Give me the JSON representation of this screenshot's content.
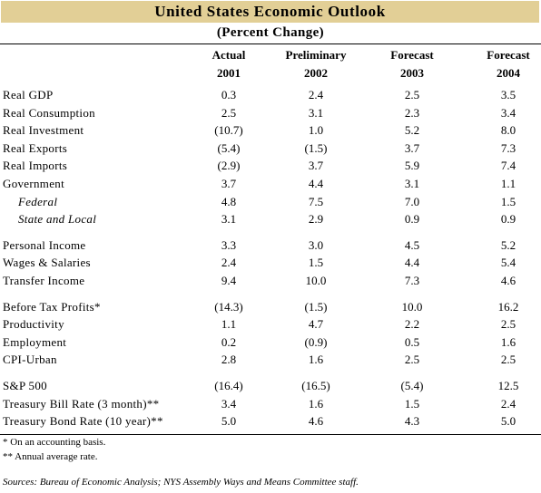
{
  "title": "United States Economic Outlook",
  "subtitle": "(Percent Change)",
  "columns": [
    {
      "label": "Actual",
      "year": "2001"
    },
    {
      "label": "Preliminary",
      "year": "2002"
    },
    {
      "label": "Forecast",
      "year": "2003"
    },
    {
      "label": "Forecast",
      "year": "2004"
    }
  ],
  "groups": [
    [
      {
        "label": "Real GDP",
        "values": [
          "0.3",
          "2.4",
          "2.5",
          "3.5"
        ]
      },
      {
        "label": "Real Consumption",
        "values": [
          "2.5",
          "3.1",
          "2.3",
          "3.4"
        ]
      },
      {
        "label": "Real Investment",
        "values": [
          "(10.7)",
          "1.0",
          "5.2",
          "8.0"
        ]
      },
      {
        "label": "Real Exports",
        "values": [
          "(5.4)",
          "(1.5)",
          "3.7",
          "7.3"
        ]
      },
      {
        "label": "Real Imports",
        "values": [
          "(2.9)",
          "3.7",
          "5.9",
          "7.4"
        ]
      },
      {
        "label": "Government",
        "values": [
          "3.7",
          "4.4",
          "3.1",
          "1.1"
        ]
      },
      {
        "label": "Federal",
        "values": [
          "4.8",
          "7.5",
          "7.0",
          "1.5"
        ],
        "sub": true
      },
      {
        "label": "State and Local",
        "values": [
          "3.1",
          "2.9",
          "0.9",
          "0.9"
        ],
        "sub": true
      }
    ],
    [
      {
        "label": "Personal Income",
        "values": [
          "3.3",
          "3.0",
          "4.5",
          "5.2"
        ]
      },
      {
        "label": "Wages & Salaries",
        "values": [
          "2.4",
          "1.5",
          "4.4",
          "5.4"
        ]
      },
      {
        "label": "Transfer Income",
        "values": [
          "9.4",
          "10.0",
          "7.3",
          "4.6"
        ]
      }
    ],
    [
      {
        "label": "Before Tax Profits*",
        "values": [
          "(14.3)",
          "(1.5)",
          "10.0",
          "16.2"
        ]
      },
      {
        "label": "Productivity",
        "values": [
          "1.1",
          "4.7",
          "2.2",
          "2.5"
        ]
      },
      {
        "label": "Employment",
        "values": [
          "0.2",
          "(0.9)",
          "0.5",
          "1.6"
        ]
      },
      {
        "label": "CPI-Urban",
        "values": [
          "2.8",
          "1.6",
          "2.5",
          "2.5"
        ]
      }
    ],
    [
      {
        "label": "S&P 500",
        "values": [
          "(16.4)",
          "(16.5)",
          "(5.4)",
          "12.5"
        ]
      },
      {
        "label": "Treasury Bill Rate (3 month)**",
        "values": [
          "3.4",
          "1.6",
          "1.5",
          "2.4"
        ]
      },
      {
        "label": "Treasury Bond Rate (10 year)**",
        "values": [
          "5.0",
          "4.6",
          "4.3",
          "5.0"
        ]
      }
    ]
  ],
  "footnotes": [
    "*   On an accounting basis.",
    "** Annual average rate."
  ],
  "sources": "Sources:  Bureau of Economic Analysis; NYS Assembly Ways and Means Committee staff."
}
